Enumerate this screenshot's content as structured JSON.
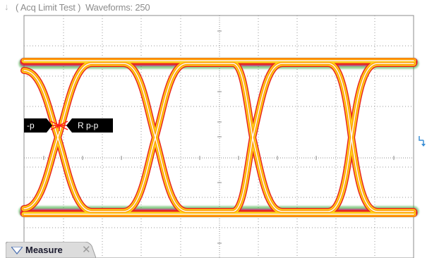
{
  "header": {
    "title": "( Acq Limit Test )  Waveforms: 250"
  },
  "markers": {
    "left_label": "-p",
    "right_label": "R p-p"
  },
  "measure_tab": {
    "label": "Measure"
  },
  "colors": {
    "background": "#ffffff",
    "grid": "#8c8c8c",
    "trace_core": "#ffffff",
    "trace_orange": "#ff9900",
    "trace_yellow": "#ffd41a",
    "trace_red": "#e8251e",
    "trace_magenta": "#d4147a",
    "trace_green": "#2ca02c",
    "marker_bg": "#000000",
    "cursor_red": "#ff1a1a",
    "reset_icon": "#3b8fd6"
  },
  "icons": {
    "title_arrow": "down-arrow-icon",
    "reset": "scale-reset-icon",
    "collapse": "triangle-down-icon",
    "close": "close-icon"
  }
}
